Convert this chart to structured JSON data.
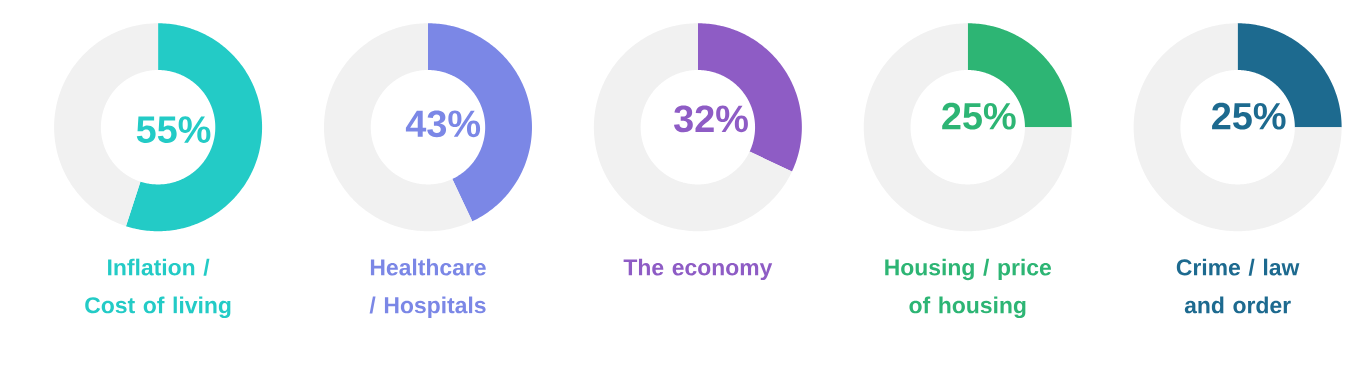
{
  "chart_data": [
    {
      "type": "donut",
      "title": "Inflation / Cost of living",
      "categories": [
        null,
        null
      ],
      "values": [
        55,
        45
      ],
      "colors": [
        "#23cbc6",
        "#f1f1f1"
      ],
      "value_labels": [
        "55%",
        null
      ]
    },
    {
      "type": "donut",
      "title": "Healthcare / Hospitals",
      "categories": [
        null,
        null
      ],
      "values": [
        43,
        57
      ],
      "colors": [
        "#7b87e6",
        "#f1f1f1"
      ],
      "value_labels": [
        "43%",
        null
      ]
    },
    {
      "type": "donut",
      "title": "The economy",
      "categories": [
        null,
        null
      ],
      "values": [
        32,
        68
      ],
      "colors": [
        "#8e5cc5",
        "#f1f1f1"
      ],
      "value_labels": [
        "32%",
        null
      ]
    },
    {
      "type": "donut",
      "title": "Housing / price of housing",
      "categories": [
        null,
        null
      ],
      "values": [
        25,
        75
      ],
      "colors": [
        "#2db574",
        "#f1f1f1"
      ],
      "value_labels": [
        "25%",
        null
      ]
    },
    {
      "type": "donut",
      "title": "Crime / law and order",
      "categories": [
        null,
        null
      ],
      "values": [
        25,
        75
      ],
      "colors": [
        "#1d6a8f",
        "#f1f1f1"
      ],
      "value_labels": [
        "25%",
        null
      ]
    }
  ]
}
